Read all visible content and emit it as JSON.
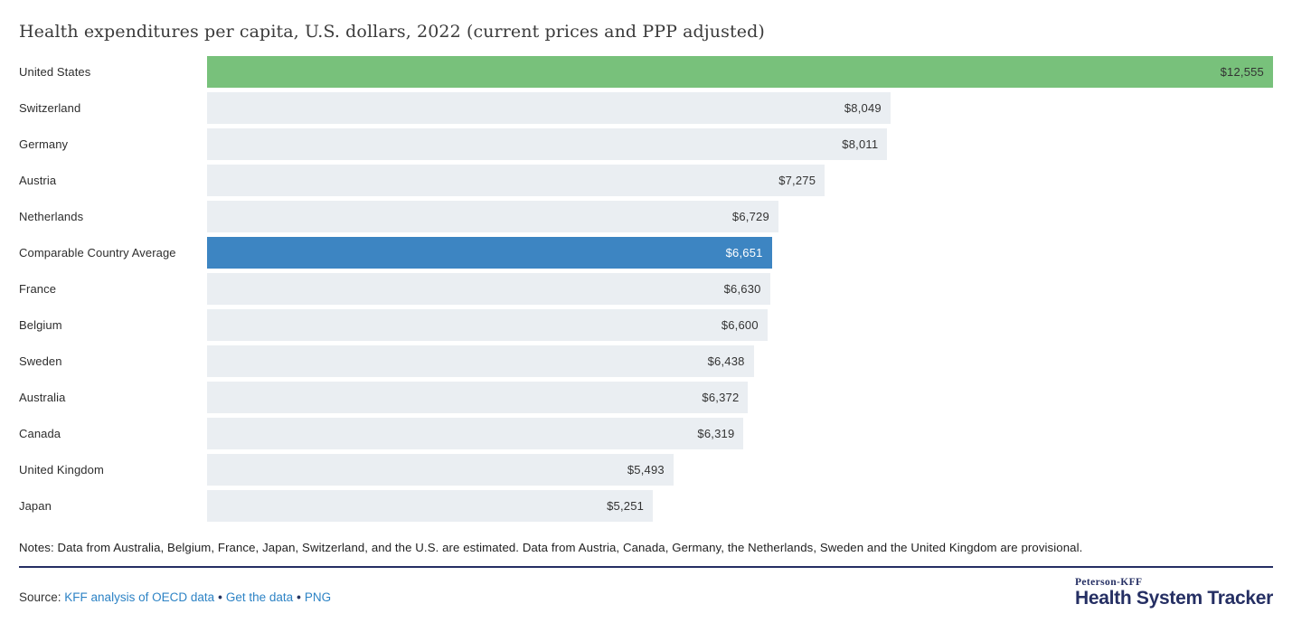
{
  "title": "Health expenditures per capita, U.S. dollars, 2022 (current prices and PPP adjusted)",
  "chart_data": {
    "type": "bar",
    "orientation": "horizontal",
    "title": "Health expenditures per capita, U.S. dollars, 2022 (current prices and PPP adjusted)",
    "xlabel": "",
    "ylabel": "",
    "xlim": [
      0,
      12555
    ],
    "grid": false,
    "legend": "none",
    "categories": [
      "United States",
      "Switzerland",
      "Germany",
      "Austria",
      "Netherlands",
      "Comparable Country Average",
      "France",
      "Belgium",
      "Sweden",
      "Australia",
      "Canada",
      "United Kingdom",
      "Japan"
    ],
    "values": [
      12555,
      8049,
      8011,
      7275,
      6729,
      6651,
      6630,
      6600,
      6438,
      6372,
      6319,
      5493,
      5251
    ],
    "rows": [
      {
        "label": "United States",
        "value": 12555,
        "display": "$12,555",
        "role": "us"
      },
      {
        "label": "Switzerland",
        "value": 8049,
        "display": "$8,049",
        "role": "default"
      },
      {
        "label": "Germany",
        "value": 8011,
        "display": "$8,011",
        "role": "default"
      },
      {
        "label": "Austria",
        "value": 7275,
        "display": "$7,275",
        "role": "default"
      },
      {
        "label": "Netherlands",
        "value": 6729,
        "display": "$6,729",
        "role": "default"
      },
      {
        "label": "Comparable Country Average",
        "value": 6651,
        "display": "$6,651",
        "role": "average"
      },
      {
        "label": "France",
        "value": 6630,
        "display": "$6,630",
        "role": "default"
      },
      {
        "label": "Belgium",
        "value": 6600,
        "display": "$6,600",
        "role": "default"
      },
      {
        "label": "Sweden",
        "value": 6438,
        "display": "$6,438",
        "role": "default"
      },
      {
        "label": "Australia",
        "value": 6372,
        "display": "$6,372",
        "role": "default"
      },
      {
        "label": "Canada",
        "value": 6319,
        "display": "$6,319",
        "role": "default"
      },
      {
        "label": "United Kingdom",
        "value": 5493,
        "display": "$5,493",
        "role": "default"
      },
      {
        "label": "Japan",
        "value": 5251,
        "display": "$5,251",
        "role": "default"
      }
    ]
  },
  "notes": "Notes: Data from Australia, Belgium, France, Japan, Switzerland, and the U.S. are estimated. Data from Austria, Canada, Germany, the Netherlands, Sweden and the United Kingdom are provisional.",
  "source": {
    "label": "Source:",
    "separator": "•",
    "links": [
      {
        "text": "KFF analysis of OECD data"
      },
      {
        "text": "Get the data"
      },
      {
        "text": "PNG"
      }
    ]
  },
  "logo": {
    "line1": "Peterson-KFF",
    "line2": "Health System Tracker"
  },
  "colors": {
    "us_bar": "#78c17b",
    "average_bar": "#3d85c2",
    "default_bar": "#eaeef2",
    "value_text_dark": "#333333",
    "value_text_light": "#ffffff",
    "accent_navy": "#252f63",
    "link_blue": "#2d83c5"
  }
}
